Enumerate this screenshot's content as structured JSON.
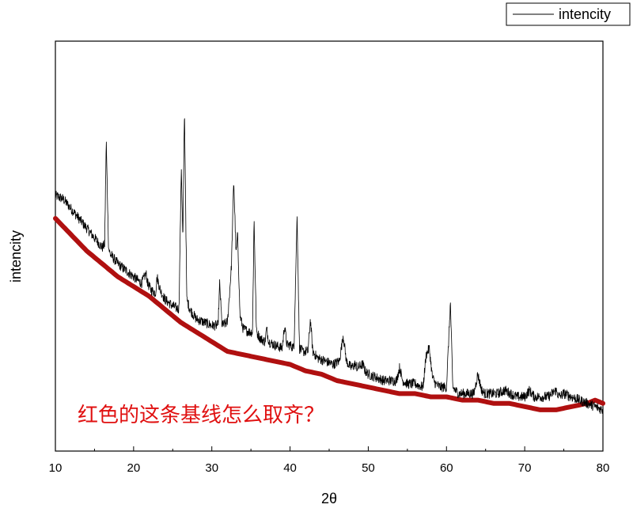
{
  "chart_data": {
    "type": "line",
    "xlabel": "2θ",
    "ylabel": "intencity",
    "xlim": [
      10,
      80
    ],
    "xticks": [
      10,
      20,
      30,
      40,
      50,
      60,
      70,
      80
    ],
    "ylim": [
      0,
      100
    ],
    "y_ticks_labeled": false,
    "grid": false,
    "legend": {
      "entries": [
        "intencity"
      ],
      "placement": "top-right"
    },
    "annotation": "红色的这条基线怎么取齐？",
    "colors": {
      "intencity": "#000000",
      "baseline": "#b01010",
      "annotation": "#e01010"
    },
    "series": [
      {
        "name": "intencity",
        "x": [
          10,
          11,
          12,
          13,
          14,
          15,
          16,
          16.3,
          16.5,
          16.8,
          17,
          18,
          19,
          20,
          21,
          21.6,
          21.8,
          22.2,
          22.8,
          23.0,
          23.4,
          24,
          25,
          25.8,
          26.1,
          26.3,
          26.5,
          26.8,
          27.2,
          28,
          29,
          30,
          30.8,
          31.0,
          31.3,
          32,
          32.5,
          32.8,
          33.1,
          33.3,
          33.6,
          34,
          34.8,
          35.2,
          35.4,
          35.7,
          36.2,
          36.8,
          37.0,
          37.3,
          38,
          39.0,
          39.3,
          39.6,
          40,
          40.5,
          40.9,
          41.2,
          41.6,
          42.3,
          42.6,
          42.9,
          43.5,
          44.5,
          45.5,
          46.3,
          46.8,
          47.2,
          47.8,
          48.3,
          48.6,
          49.3,
          49.6,
          50,
          51,
          52,
          53,
          53.6,
          54.0,
          54.4,
          55,
          56,
          57,
          57.4,
          57.8,
          58.2,
          58.6,
          59.2,
          60,
          60.5,
          60.8,
          61.1,
          61.6,
          62.5,
          63.5,
          64.0,
          64.5,
          64.9,
          65.5,
          66.5,
          67.5,
          68.2,
          69,
          70,
          70.6,
          71.2,
          72,
          73,
          74.0,
          74.4,
          75,
          76,
          77,
          78,
          79,
          80
        ],
        "y": [
          67,
          66,
          63,
          60,
          57,
          54,
          51,
          52,
          84,
          51,
          49,
          46,
          44,
          42,
          40,
          43,
          40,
          38,
          37,
          42,
          38,
          35,
          33,
          32,
          76,
          53,
          94,
          35,
          32,
          29,
          28,
          27,
          27,
          40,
          27,
          28,
          45,
          72,
          49,
          55,
          30,
          26,
          25,
          25,
          60,
          25,
          23,
          22,
          26,
          22,
          21,
          20,
          27,
          21,
          21,
          20,
          61,
          20,
          19,
          19,
          29,
          19,
          17,
          16,
          15,
          16,
          24,
          16,
          14,
          15,
          14,
          15,
          13,
          12,
          11,
          10,
          10,
          10,
          14,
          10,
          9,
          9,
          8,
          18,
          20,
          11,
          9,
          8,
          8,
          34,
          8,
          7,
          6,
          6,
          6,
          12,
          7,
          6,
          6,
          6,
          7,
          6,
          5,
          5,
          7,
          5,
          5,
          5,
          7,
          5,
          6,
          5,
          4,
          3,
          2,
          1
        ]
      },
      {
        "name": "",
        "x": [
          10,
          12,
          14,
          16,
          18,
          20,
          22,
          24,
          26,
          28,
          30,
          32,
          34,
          36,
          38,
          40,
          42,
          44,
          46,
          48,
          50,
          52,
          54,
          56,
          58,
          60,
          62,
          64,
          66,
          68,
          70,
          72,
          74,
          76,
          78,
          79,
          80
        ],
        "y": [
          60,
          55,
          50,
          46,
          42,
          39,
          36,
          32,
          28,
          25,
          22,
          19,
          18,
          17,
          16,
          15,
          13,
          12,
          10,
          9,
          8,
          7,
          6,
          6,
          5,
          5,
          4,
          4,
          3,
          3,
          2,
          1,
          1,
          2,
          3,
          4,
          3
        ]
      }
    ]
  }
}
